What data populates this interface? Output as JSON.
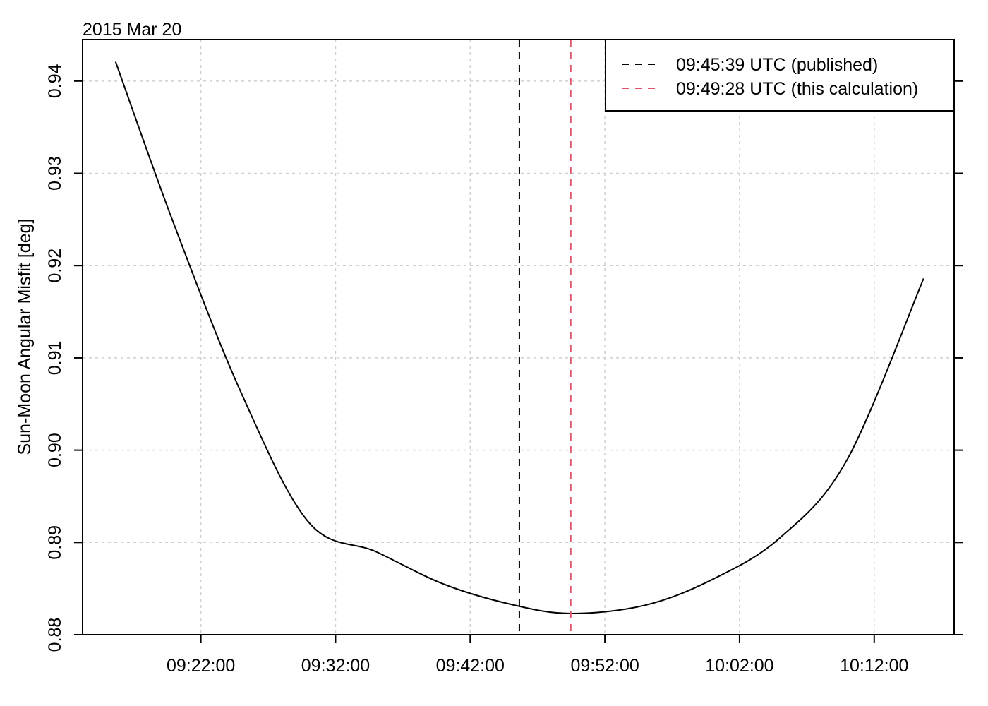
{
  "chart_data": {
    "type": "line",
    "title": "2015 Mar 20",
    "xlabel": "",
    "ylabel": "Sun-Moon Angular Misfit [deg]",
    "x_unit": "UTC time (HH:MM:SS)",
    "xlim": [
      "09:13:13",
      "10:17:56"
    ],
    "ylim": [
      0.88,
      0.9445
    ],
    "x_ticks": [
      "09:22:00",
      "09:32:00",
      "09:42:00",
      "09:52:00",
      "10:02:00",
      "10:12:00"
    ],
    "y_ticks": [
      "0.88",
      "0.89",
      "0.90",
      "0.91",
      "0.92",
      "0.93",
      "0.94"
    ],
    "grid": true,
    "legend_position": "top-right",
    "series": [
      {
        "color": "#000000",
        "style": "solid",
        "x": [
          "09:15:40",
          "09:20:00",
          "09:25:00",
          "09:30:00",
          "09:35:00",
          "09:40:00",
          "09:45:00",
          "09:49:28",
          "09:55:00",
          "10:00:00",
          "10:05:00",
          "10:10:00",
          "10:15:40"
        ],
        "values": [
          0.9421,
          0.9245,
          0.9062,
          0.8922,
          0.889,
          0.8855,
          0.8833,
          0.8823,
          0.8832,
          0.886,
          0.8905,
          0.899,
          0.9186
        ]
      }
    ],
    "vlines": [
      {
        "x": "09:45:39",
        "color": "#000000",
        "style": "dashed",
        "label": "09:45:39 UTC (published)"
      },
      {
        "x": "09:49:28",
        "color": "#DF536B",
        "style": "dashed",
        "label": "09:49:28 UTC (this calculation)"
      }
    ]
  }
}
